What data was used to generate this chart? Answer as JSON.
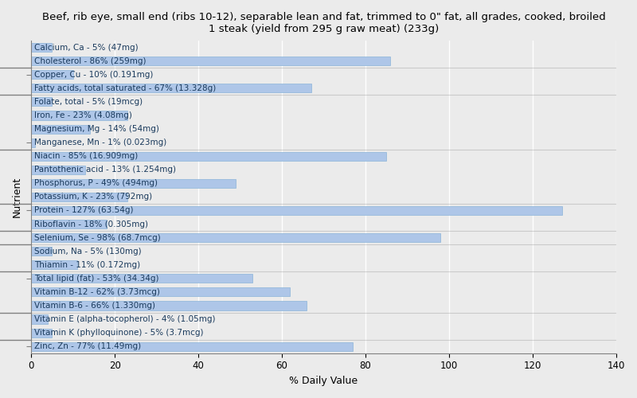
{
  "title": "Beef, rib eye, small end (ribs 10-12), separable lean and fat, trimmed to 0\" fat, all grades, cooked, broiled\n1 steak (yield from 295 g raw meat) (233g)",
  "xlabel": "% Daily Value",
  "ylabel": "Nutrient",
  "nutrients": [
    "Calcium, Ca - 5% (47mg)",
    "Cholesterol - 86% (259mg)",
    "Copper, Cu - 10% (0.191mg)",
    "Fatty acids, total saturated - 67% (13.328g)",
    "Folate, total - 5% (19mcg)",
    "Iron, Fe - 23% (4.08mg)",
    "Magnesium, Mg - 14% (54mg)",
    "Manganese, Mn - 1% (0.023mg)",
    "Niacin - 85% (16.909mg)",
    "Pantothenic acid - 13% (1.254mg)",
    "Phosphorus, P - 49% (494mg)",
    "Potassium, K - 23% (792mg)",
    "Protein - 127% (63.54g)",
    "Riboflavin - 18% (0.305mg)",
    "Selenium, Se - 98% (68.7mcg)",
    "Sodium, Na - 5% (130mg)",
    "Thiamin - 11% (0.172mg)",
    "Total lipid (fat) - 53% (34.34g)",
    "Vitamin B-12 - 62% (3.73mcg)",
    "Vitamin B-6 - 66% (1.330mg)",
    "Vitamin E (alpha-tocopherol) - 4% (1.05mg)",
    "Vitamin K (phylloquinone) - 5% (3.7mcg)",
    "Zinc, Zn - 77% (11.49mg)"
  ],
  "values": [
    5,
    86,
    10,
    67,
    5,
    23,
    14,
    1,
    85,
    13,
    49,
    23,
    127,
    18,
    98,
    5,
    11,
    53,
    62,
    66,
    4,
    5,
    77
  ],
  "bar_color": "#aec6e8",
  "bar_edge_color": "#8ab4d8",
  "text_color": "#1a3a5c",
  "bg_color": "#ebebeb",
  "plot_bg_color": "#ebebeb",
  "xlim": [
    0,
    140
  ],
  "xticks": [
    0,
    20,
    40,
    60,
    80,
    100,
    120,
    140
  ],
  "title_fontsize": 9.5,
  "label_fontsize": 7.5,
  "axis_label_fontsize": 9,
  "tick_fontsize": 8.5,
  "separator_positions": [
    1.5,
    3.5,
    7.5,
    11.5,
    13.5,
    14.5,
    16.5,
    19.5,
    21.5
  ]
}
